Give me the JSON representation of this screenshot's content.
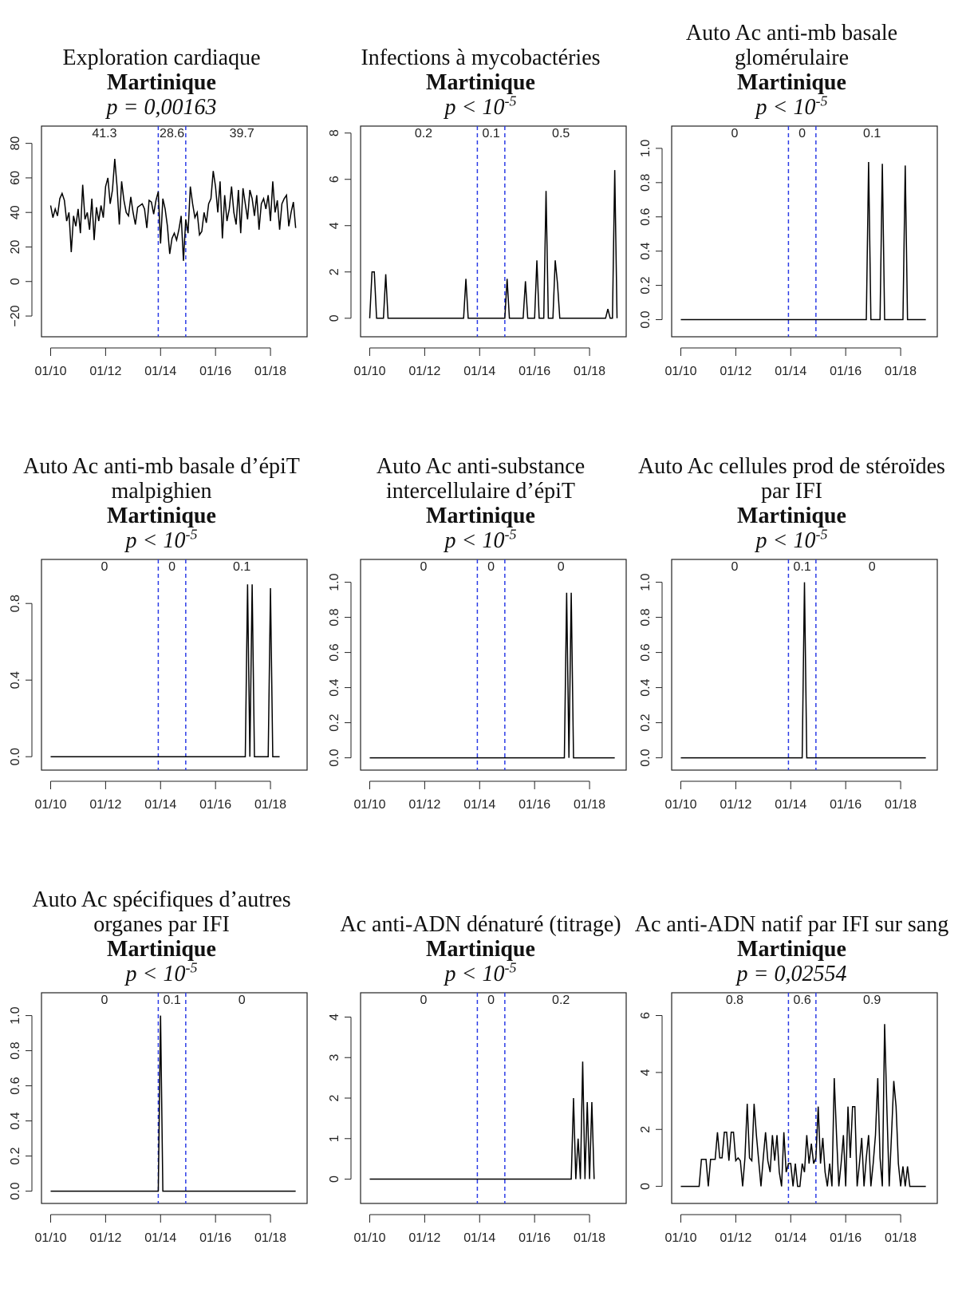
{
  "chart_data": [
    {
      "type": "line",
      "title": "Exploration cardiaque",
      "subtitle": "Martinique",
      "p_value": "p = 0,00163",
      "x": [
        0,
        1,
        2,
        3,
        4,
        5,
        6,
        7,
        8,
        9,
        10,
        11,
        12,
        13,
        14,
        15,
        16,
        17,
        18,
        19,
        20,
        21,
        22,
        23,
        24,
        25,
        26,
        27,
        28,
        29,
        30,
        31,
        32,
        33,
        34,
        35,
        36,
        37,
        38,
        39,
        40,
        41,
        42,
        43,
        44,
        45,
        46,
        47,
        48,
        49,
        50,
        51,
        52,
        53,
        54,
        55,
        56,
        57,
        58,
        59,
        60,
        61,
        62,
        63,
        64,
        65,
        66,
        67,
        68,
        69,
        70,
        71,
        72,
        73,
        74,
        75,
        76,
        77,
        78,
        79,
        80,
        81,
        82,
        83,
        84,
        85,
        86,
        87,
        88,
        89,
        90,
        91,
        92,
        93,
        94,
        95,
        96,
        97,
        98,
        99,
        100,
        101,
        102,
        103,
        104,
        105,
        106,
        107
      ],
      "values": [
        44,
        37,
        42,
        38,
        48,
        51,
        47,
        35,
        40,
        17,
        38,
        32,
        42,
        28,
        56,
        36,
        40,
        30,
        48,
        24,
        43,
        35,
        44,
        37,
        55,
        60,
        45,
        53,
        71,
        55,
        33,
        58,
        47,
        40,
        38,
        49,
        40,
        33,
        43,
        44,
        45,
        42,
        31,
        47,
        46,
        39,
        47,
        52,
        22,
        48,
        42,
        32,
        16,
        25,
        28,
        24,
        30,
        38,
        12,
        36,
        28,
        55,
        45,
        37,
        40,
        27,
        29,
        40,
        34,
        45,
        48,
        64,
        55,
        40,
        58,
        25,
        50,
        35,
        42,
        55,
        40,
        33,
        53,
        28,
        54,
        45,
        36,
        53,
        48,
        38,
        50,
        30,
        45,
        48,
        42,
        50,
        35,
        58,
        40,
        47,
        30,
        45,
        48,
        50,
        32,
        40,
        46,
        31
      ],
      "color": "#000000",
      "xlim": [
        -4,
        112
      ],
      "ylim": [
        -32,
        90
      ],
      "xticks": [
        {
          "value": 0,
          "label": "01/10"
        },
        {
          "value": 24,
          "label": "01/12"
        },
        {
          "value": 48,
          "label": "01/14"
        },
        {
          "value": 72,
          "label": "01/16"
        },
        {
          "value": 96,
          "label": "01/18"
        }
      ],
      "yticks": [
        {
          "value": -20,
          "label": "−20"
        },
        0,
        20,
        40,
        60,
        80
      ],
      "vlines": [
        47,
        59
      ],
      "vline_color": "#2b3be6",
      "period_means": [
        41.3,
        28.6,
        39.7
      ]
    },
    {
      "type": "line",
      "title": "Infections à mycobactéries",
      "subtitle": "Martinique",
      "p_value": "p < 10",
      "p_exponent": "-5",
      "x": [
        0,
        1,
        2,
        3,
        6,
        7,
        8,
        41,
        42,
        43,
        59,
        60,
        61,
        67,
        68,
        69,
        72,
        73,
        74,
        76,
        77,
        78,
        80,
        81,
        82,
        83,
        103,
        104,
        105,
        106,
        107,
        108
      ],
      "values": [
        0,
        2,
        2,
        0,
        0,
        1.9,
        0,
        0,
        1.7,
        0,
        0,
        1.7,
        0,
        0,
        1.6,
        0,
        0,
        2.5,
        0,
        0,
        5.5,
        0,
        0,
        2.5,
        1.5,
        0,
        0,
        0.4,
        0,
        0,
        6.4,
        0
      ],
      "color": "#000000",
      "xlim": [
        -4,
        112
      ],
      "ylim": [
        -0.8,
        8.3
      ],
      "xticks": [
        {
          "value": 0,
          "label": "01/10"
        },
        {
          "value": 24,
          "label": "01/12"
        },
        {
          "value": 48,
          "label": "01/14"
        },
        {
          "value": 72,
          "label": "01/16"
        },
        {
          "value": 96,
          "label": "01/18"
        }
      ],
      "yticks": [
        0,
        2,
        4,
        6,
        8
      ],
      "vlines": [
        47,
        59
      ],
      "vline_color": "#2b3be6",
      "period_means": [
        0.2,
        0.1,
        0.5
      ]
    },
    {
      "type": "line",
      "title": "Auto Ac anti-mb basale glomérulaire",
      "subtitle": "Martinique",
      "p_value": "p < 10",
      "p_exponent": "-5",
      "x": [
        0,
        81,
        82,
        83,
        87,
        88,
        89,
        97,
        98,
        99,
        107
      ],
      "values": [
        0,
        0,
        0.92,
        0,
        0,
        0.91,
        0,
        0,
        0.9,
        0,
        0
      ],
      "color": "#000000",
      "xlim": [
        -4,
        112
      ],
      "ylim": [
        -0.1,
        1.13
      ],
      "xticks": [
        {
          "value": 0,
          "label": "01/10"
        },
        {
          "value": 24,
          "label": "01/12"
        },
        {
          "value": 48,
          "label": "01/14"
        },
        {
          "value": 72,
          "label": "01/16"
        },
        {
          "value": 96,
          "label": "01/18"
        }
      ],
      "yticks": [
        {
          "value": 0,
          "label": "0.0"
        },
        0.2,
        0.4,
        0.6,
        0.8,
        {
          "value": 1,
          "label": "1.0"
        }
      ],
      "vlines": [
        47,
        59
      ],
      "vline_color": "#2b3be6",
      "period_means": [
        0,
        0,
        0.1
      ]
    },
    {
      "type": "line",
      "title": "Auto Ac anti-mb basale d’épiT malpighien",
      "subtitle": "Martinique",
      "p_value": "p < 10",
      "p_exponent": "-5",
      "x": [
        0,
        85,
        86,
        87,
        88,
        89,
        95,
        96,
        97,
        100
      ],
      "values": [
        0,
        0,
        0.9,
        0,
        0.9,
        0,
        0,
        0.88,
        0,
        0
      ],
      "color": "#000000",
      "xlim": [
        -4,
        112
      ],
      "ylim": [
        -0.07,
        1.03
      ],
      "xticks": [
        {
          "value": 0,
          "label": "01/10"
        },
        {
          "value": 24,
          "label": "01/12"
        },
        {
          "value": 48,
          "label": "01/14"
        },
        {
          "value": 72,
          "label": "01/16"
        },
        {
          "value": 96,
          "label": "01/18"
        }
      ],
      "yticks": [
        {
          "value": 0,
          "label": "0.0"
        },
        0.4,
        0.8
      ],
      "vlines": [
        47,
        59
      ],
      "vline_color": "#2b3be6",
      "period_means": [
        0,
        0,
        0.1
      ]
    },
    {
      "type": "line",
      "title": "Auto Ac anti-substance intercellulaire d’épiT",
      "subtitle": "Martinique",
      "p_value": "p < 10",
      "p_exponent": "-5",
      "x": [
        0,
        85,
        86,
        87,
        88,
        89,
        107
      ],
      "values": [
        0,
        0,
        0.94,
        0,
        0.94,
        0,
        0
      ],
      "color": "#000000",
      "xlim": [
        -4,
        112
      ],
      "ylim": [
        -0.07,
        1.13
      ],
      "xticks": [
        {
          "value": 0,
          "label": "01/10"
        },
        {
          "value": 24,
          "label": "01/12"
        },
        {
          "value": 48,
          "label": "01/14"
        },
        {
          "value": 72,
          "label": "01/16"
        },
        {
          "value": 96,
          "label": "01/18"
        }
      ],
      "yticks": [
        {
          "value": 0,
          "label": "0.0"
        },
        0.2,
        0.4,
        0.6,
        0.8,
        {
          "value": 1,
          "label": "1.0"
        }
      ],
      "vlines": [
        47,
        59
      ],
      "vline_color": "#2b3be6",
      "period_means": [
        0,
        0,
        0
      ]
    },
    {
      "type": "line",
      "title": "Auto Ac cellules prod de stéroïdes par IFI",
      "subtitle": "Martinique",
      "p_value": "p < 10",
      "p_exponent": "-5",
      "x": [
        0,
        53,
        54,
        55,
        107
      ],
      "values": [
        0,
        0,
        1,
        0,
        0
      ],
      "color": "#000000",
      "xlim": [
        -4,
        112
      ],
      "ylim": [
        -0.07,
        1.13
      ],
      "xticks": [
        {
          "value": 0,
          "label": "01/10"
        },
        {
          "value": 24,
          "label": "01/12"
        },
        {
          "value": 48,
          "label": "01/14"
        },
        {
          "value": 72,
          "label": "01/16"
        },
        {
          "value": 96,
          "label": "01/18"
        }
      ],
      "yticks": [
        {
          "value": 0,
          "label": "0.0"
        },
        0.2,
        0.4,
        0.6,
        0.8,
        {
          "value": 1,
          "label": "1.0"
        }
      ],
      "vlines": [
        47,
        59
      ],
      "vline_color": "#2b3be6",
      "period_means": [
        0,
        0.1,
        0
      ]
    },
    {
      "type": "line",
      "title": "Auto Ac spécifiques d’autres organes par IFI",
      "subtitle": "Martinique",
      "p_value": "p < 10",
      "p_exponent": "-5",
      "x": [
        0,
        47,
        48,
        49,
        107
      ],
      "values": [
        0,
        0,
        1,
        0,
        0
      ],
      "color": "#000000",
      "xlim": [
        -4,
        112
      ],
      "ylim": [
        -0.07,
        1.13
      ],
      "xticks": [
        {
          "value": 0,
          "label": "01/10"
        },
        {
          "value": 24,
          "label": "01/12"
        },
        {
          "value": 48,
          "label": "01/14"
        },
        {
          "value": 72,
          "label": "01/16"
        },
        {
          "value": 96,
          "label": "01/18"
        }
      ],
      "yticks": [
        {
          "value": 0,
          "label": "0.0"
        },
        0.2,
        0.4,
        0.6,
        0.8,
        {
          "value": 1,
          "label": "1.0"
        }
      ],
      "vlines": [
        47,
        59
      ],
      "vline_color": "#2b3be6",
      "period_means": [
        0,
        0.1,
        0
      ]
    },
    {
      "type": "line",
      "title": "Ac anti-ADN dénaturé (titrage)",
      "subtitle": "Martinique",
      "p_value": "p < 10",
      "p_exponent": "-5",
      "x": [
        0,
        88,
        89,
        90,
        91,
        92,
        93,
        94,
        95,
        96,
        97,
        98
      ],
      "values": [
        0,
        0,
        2,
        0,
        1,
        0,
        2.9,
        0,
        1.9,
        0,
        1.9,
        0
      ],
      "color": "#000000",
      "xlim": [
        -4,
        112
      ],
      "ylim": [
        -0.6,
        4.6
      ],
      "xticks": [
        {
          "value": 0,
          "label": "01/10"
        },
        {
          "value": 24,
          "label": "01/12"
        },
        {
          "value": 48,
          "label": "01/14"
        },
        {
          "value": 72,
          "label": "01/16"
        },
        {
          "value": 96,
          "label": "01/18"
        }
      ],
      "yticks": [
        0,
        1,
        2,
        3,
        4
      ],
      "vlines": [
        47,
        59
      ],
      "vline_color": "#2b3be6",
      "period_means": [
        0,
        0,
        0.2
      ]
    },
    {
      "type": "line",
      "title": "Ac anti-ADN natif par IFI sur sang",
      "subtitle": "Martinique",
      "p_value": "p = 0,02554",
      "x": [
        0,
        1,
        2,
        3,
        4,
        5,
        6,
        7,
        8,
        9,
        10,
        11,
        12,
        13,
        14,
        15,
        16,
        17,
        18,
        19,
        20,
        21,
        22,
        23,
        24,
        25,
        26,
        27,
        28,
        29,
        30,
        31,
        32,
        33,
        34,
        35,
        36,
        37,
        38,
        39,
        40,
        41,
        42,
        43,
        44,
        45,
        46,
        47,
        48,
        49,
        50,
        51,
        52,
        53,
        54,
        55,
        56,
        57,
        58,
        59,
        60,
        61,
        62,
        63,
        64,
        65,
        66,
        67,
        68,
        69,
        70,
        71,
        72,
        73,
        74,
        75,
        76,
        77,
        78,
        79,
        80,
        81,
        82,
        83,
        84,
        85,
        86,
        87,
        88,
        89,
        90,
        91,
        92,
        93,
        94,
        95,
        96,
        97,
        98,
        99,
        100,
        101,
        102,
        103,
        104,
        105,
        106,
        107
      ],
      "values": [
        0,
        0,
        0,
        0,
        0,
        0,
        0,
        0,
        0,
        0.95,
        0.95,
        0.95,
        0,
        0.95,
        0.95,
        0.95,
        1.9,
        1,
        1,
        1.9,
        1.9,
        0.9,
        1.9,
        1.9,
        0.9,
        1,
        0.9,
        0,
        1,
        2.9,
        1,
        0.9,
        2.9,
        1.8,
        0.9,
        0,
        1,
        1.9,
        0.9,
        0.5,
        1.8,
        0.9,
        1.8,
        0.5,
        0,
        1.9,
        0.5,
        0.8,
        0.8,
        0,
        0.8,
        0,
        0,
        0.8,
        0.5,
        1.8,
        0.8,
        1.5,
        0.8,
        1,
        2.8,
        0.8,
        1.7,
        0.5,
        0,
        0.8,
        0,
        3.8,
        1.8,
        0,
        0.8,
        1.8,
        0,
        2.8,
        1,
        2.8,
        2.8,
        0,
        0.8,
        1.7,
        0,
        1,
        1.8,
        0,
        0.8,
        1.8,
        3.8,
        1,
        0,
        5.7,
        2.7,
        0,
        1.8,
        3.7,
        2.8,
        0.8,
        0,
        0.7,
        0,
        0.7,
        0,
        0,
        0,
        0,
        0,
        0,
        0,
        0
      ],
      "color": "#000000",
      "xlim": [
        -4,
        112
      ],
      "ylim": [
        -0.6,
        6.8
      ],
      "xticks": [
        {
          "value": 0,
          "label": "01/10"
        },
        {
          "value": 24,
          "label": "01/12"
        },
        {
          "value": 48,
          "label": "01/14"
        },
        {
          "value": 72,
          "label": "01/16"
        },
        {
          "value": 96,
          "label": "01/18"
        }
      ],
      "yticks": [
        0,
        2,
        4,
        6
      ],
      "vlines": [
        47,
        59
      ],
      "vline_color": "#2b3be6",
      "period_means": [
        0.8,
        0.6,
        0.9
      ]
    }
  ]
}
